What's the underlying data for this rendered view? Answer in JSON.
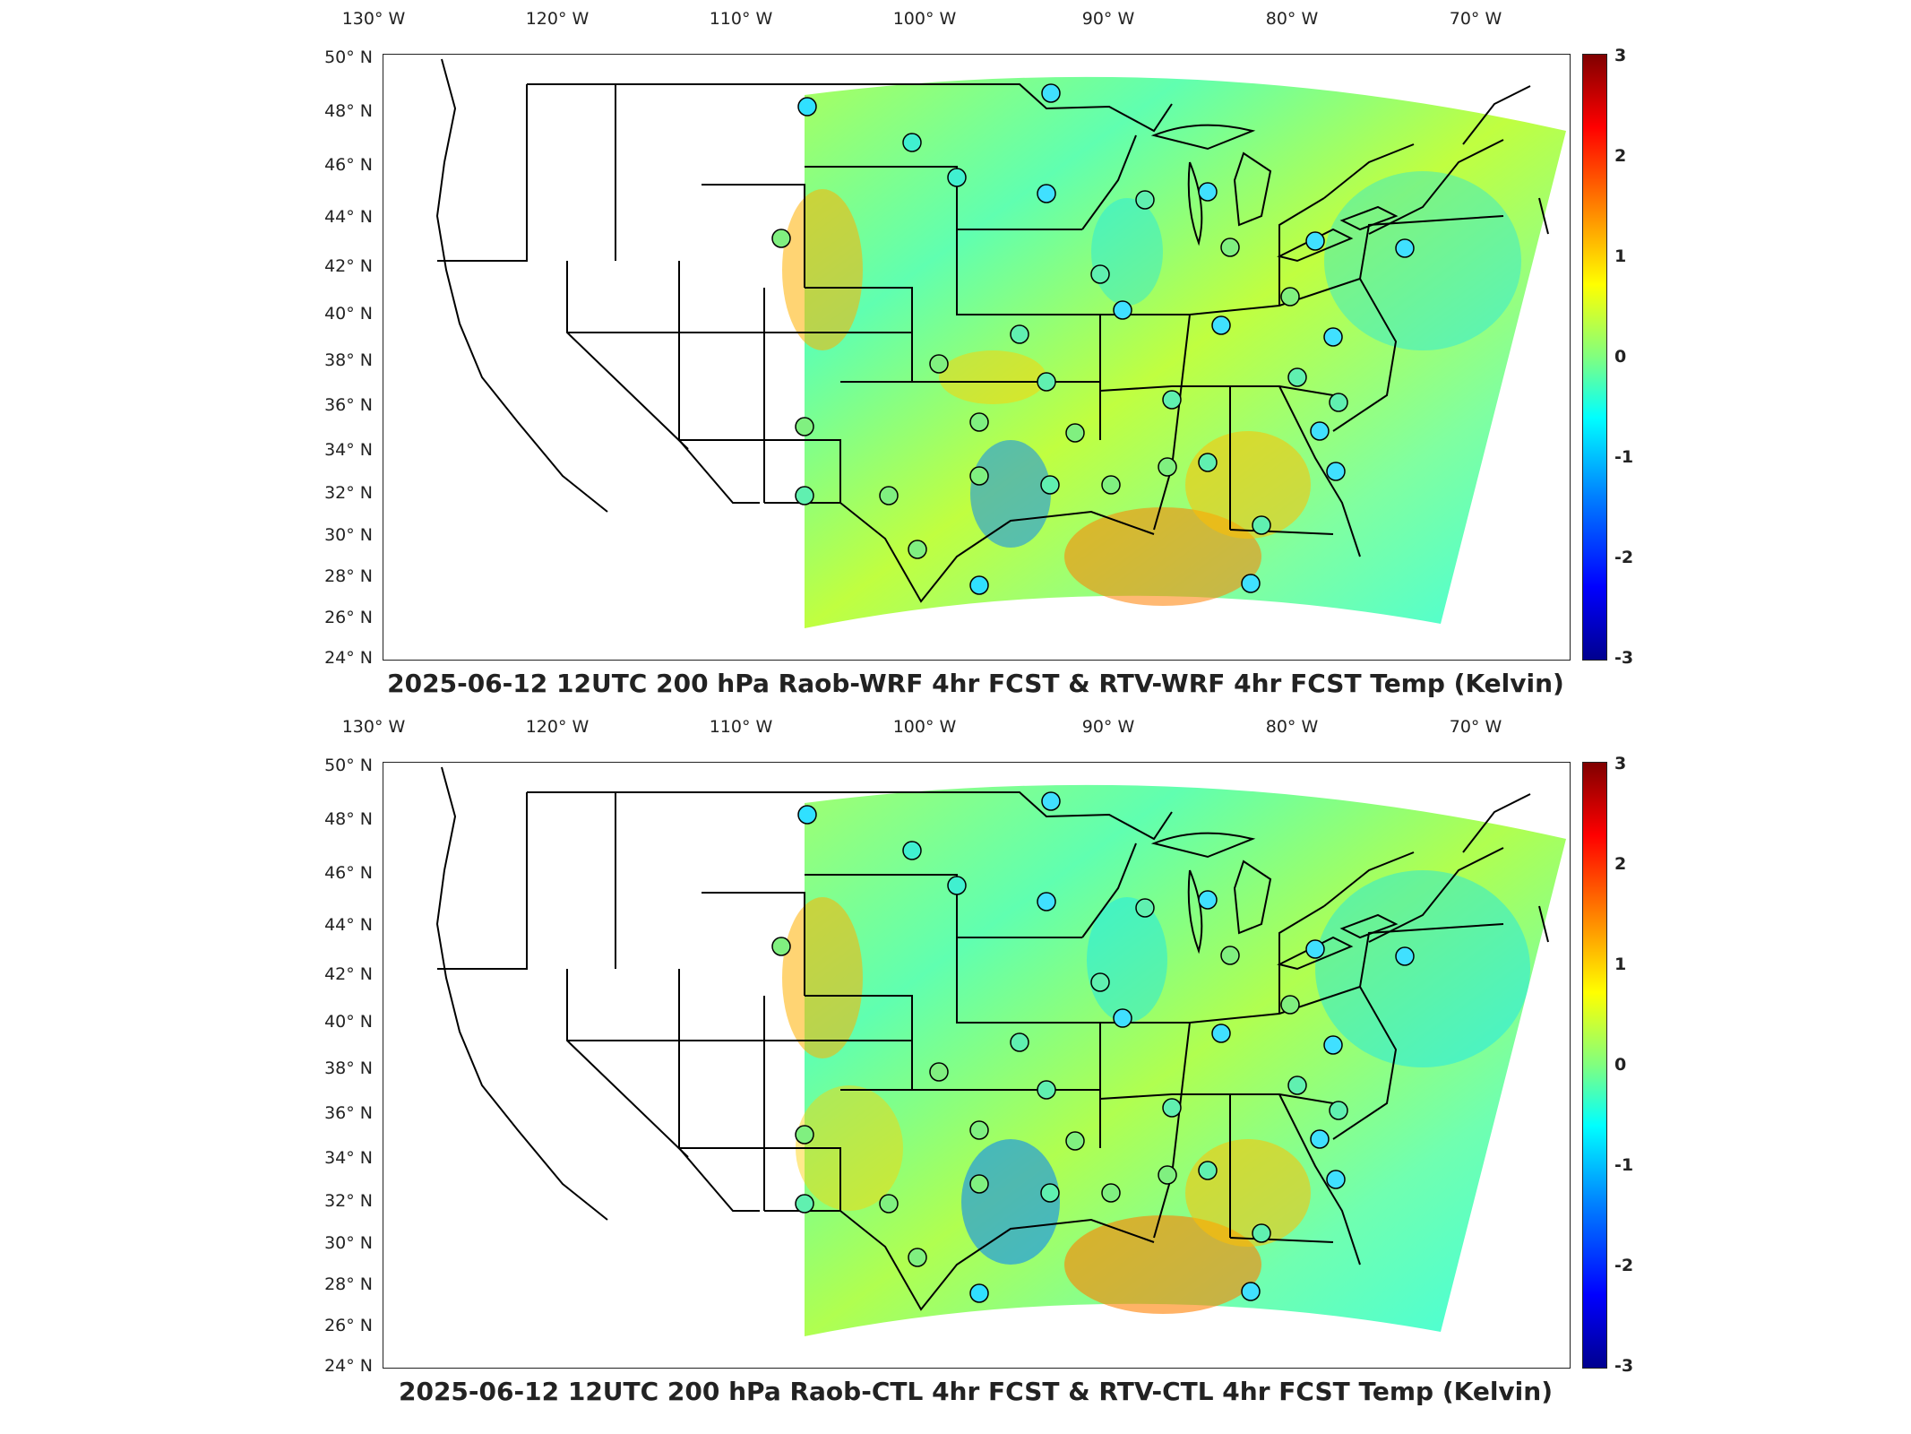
{
  "lon_ticks": [
    "130° W",
    "120° W",
    "110° W",
    "100° W",
    "90° W",
    "80° W",
    "70° W"
  ],
  "lat_ticks": [
    "50° N",
    "48° N",
    "46° N",
    "44° N",
    "42° N",
    "40° N",
    "38° N",
    "36° N",
    "34° N",
    "32° N",
    "30° N",
    "28° N",
    "26° N",
    "24° N"
  ],
  "colorbar_ticks": [
    "3",
    "2",
    "1",
    "0",
    "-1",
    "-2",
    "-3"
  ],
  "colorbar_colors": {
    "min": "#00008f",
    "mid": "#80ff80",
    "max": "#800000"
  },
  "panels": [
    {
      "title": "2025-06-12 12UTC 200 hPa Raob-WRF 4hr FCST & RTV-WRF 4hr FCST Temp (Kelvin)"
    },
    {
      "title": "2025-06-12 12UTC 200 hPa Raob-CTL 4hr FCST & RTV-CTL 4hr FCST Temp (Kelvin)"
    }
  ],
  "map_data": {
    "projection": "lat-lon",
    "lon_range": [
      -130,
      -64
    ],
    "lat_range": [
      24,
      50
    ],
    "variable": "Temperature difference",
    "units": "Kelvin",
    "colorbar_range": [
      -3,
      3
    ]
  }
}
